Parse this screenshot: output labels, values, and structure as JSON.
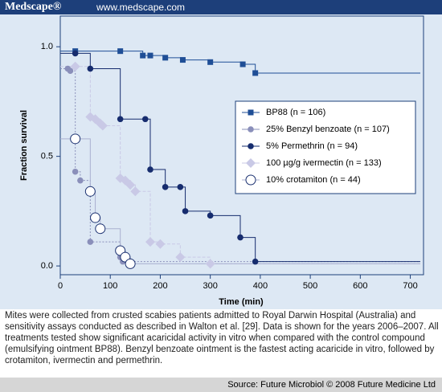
{
  "header": {
    "brand": "Medscape®",
    "url": "www.medscape.com"
  },
  "chart_data": {
    "type": "line",
    "xlabel": "Time (min)",
    "ylabel": "Fraction survival",
    "xlim": [
      0,
      720
    ],
    "ylim": [
      -0.04,
      1.14
    ],
    "xticks": [
      0,
      100,
      200,
      300,
      400,
      500,
      600,
      700
    ],
    "yticks": [
      {
        "value": 0,
        "label": "0.0"
      },
      {
        "value": 0.5,
        "label": "0.5"
      },
      {
        "value": 1,
        "label": "1.0"
      }
    ],
    "series": [
      {
        "name": "BP88 (n = 106)",
        "color": "#1f4e96",
        "marker": "square",
        "x": [
          30,
          120,
          165,
          180,
          210,
          245,
          300,
          365,
          390
        ],
        "values": [
          0.98,
          0.98,
          0.96,
          0.96,
          0.95,
          0.94,
          0.93,
          0.92,
          0.88
        ]
      },
      {
        "name": "25% Benzyl benzoate (n = 107)",
        "color": "#8a8fba",
        "marker": "circle",
        "x": [
          15,
          20,
          30,
          40,
          60,
          120,
          125
        ],
        "values": [
          0.9,
          0.89,
          0.43,
          0.39,
          0.11,
          0.04,
          0.02
        ]
      },
      {
        "name": "5% Permethrin (n = 94)",
        "color": "#162c6e",
        "marker": "circle",
        "x": [
          30,
          60,
          120,
          170,
          180,
          210,
          240,
          250,
          300,
          360,
          390
        ],
        "values": [
          0.97,
          0.9,
          0.67,
          0.67,
          0.44,
          0.36,
          0.36,
          0.25,
          0.23,
          0.13,
          0.02
        ]
      },
      {
        "name": "100 µg/g ivermectin (n = 133)",
        "color": "#c9c9e6",
        "marker": "diamond",
        "x": [
          30,
          60,
          70,
          80,
          85,
          120,
          130,
          140,
          150,
          180,
          200,
          240,
          300
        ],
        "values": [
          0.91,
          0.68,
          0.67,
          0.65,
          0.64,
          0.4,
          0.39,
          0.37,
          0.34,
          0.11,
          0.1,
          0.04,
          0.01
        ]
      },
      {
        "name": "10% crotamiton (n = 44)",
        "color": "#1a3070",
        "marker": "open-circle",
        "x": [
          30,
          60,
          70,
          80,
          120,
          130,
          140
        ],
        "values": [
          0.58,
          0.34,
          0.22,
          0.17,
          0.07,
          0.04,
          0.01
        ]
      }
    ]
  },
  "caption": "Mites were collected from crusted scabies patients admitted to Royal Darwin Hospital (Australia) and sensitivity assays conducted as described in Walton et al. [29]. Data is shown for the years 2006–2007. All treatments tested show significant acaricidal activity in vitro when compared with the control compound (emulsifying ointment BP88). Benzyl benzoate ointment is the fastest acting acaricide in vitro, followed by crotamiton, ivermectin and permethrin.",
  "footer": "Source: Future Microbiol © 2008 Future Medicine Ltd"
}
